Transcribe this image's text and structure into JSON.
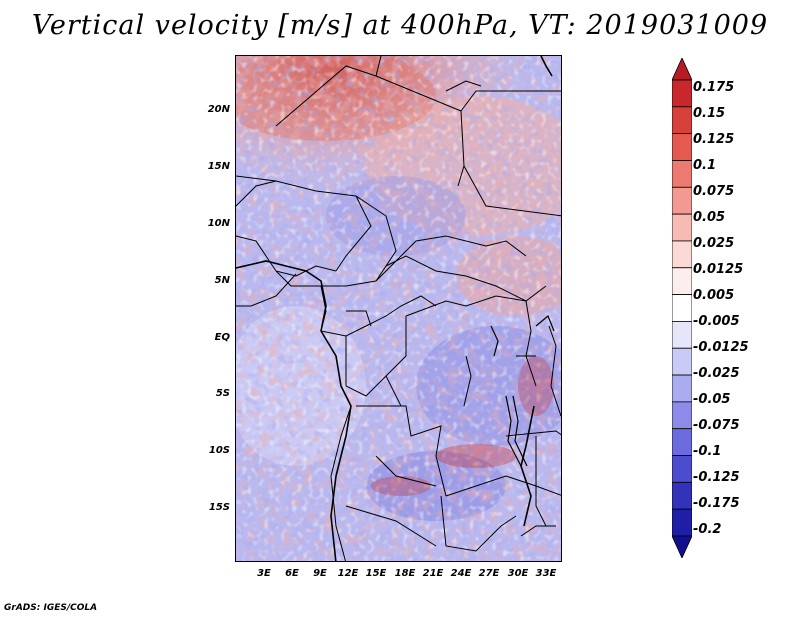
{
  "title": "Vertical velocity [m/s] at 400hPa, VT: 2019031009",
  "lat_labels": [
    "20N",
    "15N",
    "10N",
    "5N",
    "EQ",
    "5S",
    "10S",
    "15S"
  ],
  "lon_labels": [
    "3E",
    "6E",
    "9E",
    "12E",
    "15E",
    "18E",
    "21E",
    "24E",
    "27E",
    "30E",
    "33E"
  ],
  "colorbar": {
    "labels": [
      "0.175",
      "0.15",
      "0.125",
      "0.1",
      "0.075",
      "0.05",
      "0.025",
      "0.0125",
      "0.005",
      "-0.005",
      "-0.0125",
      "-0.025",
      "-0.05",
      "-0.075",
      "-0.1",
      "-0.125",
      "-0.175",
      "-0.2"
    ],
    "colors": [
      "#b51c24",
      "#c8282c",
      "#d8403c",
      "#e45a50",
      "#ec7a70",
      "#f29a92",
      "#f7bbb4",
      "#fbd9d4",
      "#fdeeee",
      "#ffffff",
      "#e6e6fb",
      "#cacaf6",
      "#ababf0",
      "#8c8ce8",
      "#6b6bde",
      "#4c4cce",
      "#3232bb",
      "#1e1ea6",
      "#120e90"
    ]
  },
  "footer": "GrADS: IGES/COLA"
}
